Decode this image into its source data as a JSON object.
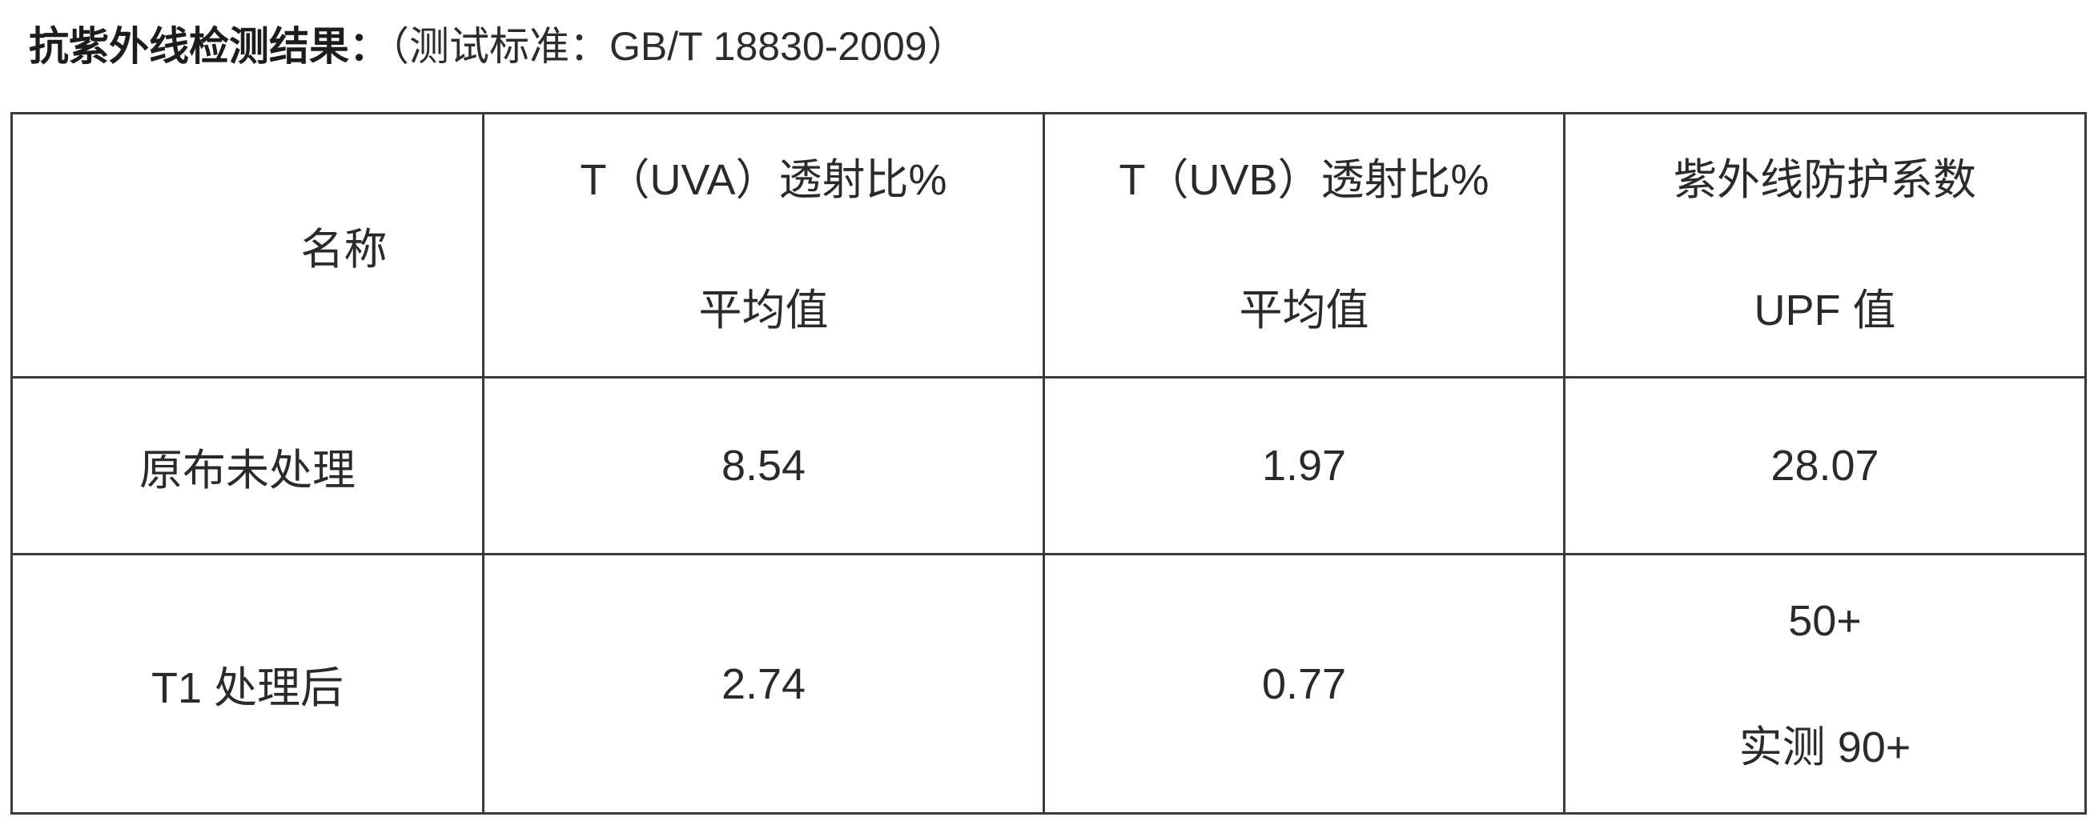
{
  "title": {
    "main": "抗紫外线检测结果：",
    "standard": "（测试标准：GB/T 18830-2009）"
  },
  "table": {
    "header": {
      "name": "名称",
      "uva": {
        "line1": "T（UVA）透射比%",
        "line2": "平均值"
      },
      "uvb": {
        "line1": "T（UVB）透射比%",
        "line2": "平均值"
      },
      "upf": {
        "line1": "紫外线防护系数",
        "line2": "UPF 值"
      }
    },
    "rows": [
      {
        "name": "原布未处理",
        "uva": "8.54",
        "uvb": "1.97",
        "upf": "28.07"
      },
      {
        "name": "T1 处理后",
        "uva": "2.74",
        "uvb": "0.77",
        "upf_line1": "50+",
        "upf_line2": "实测 90+"
      }
    ]
  }
}
